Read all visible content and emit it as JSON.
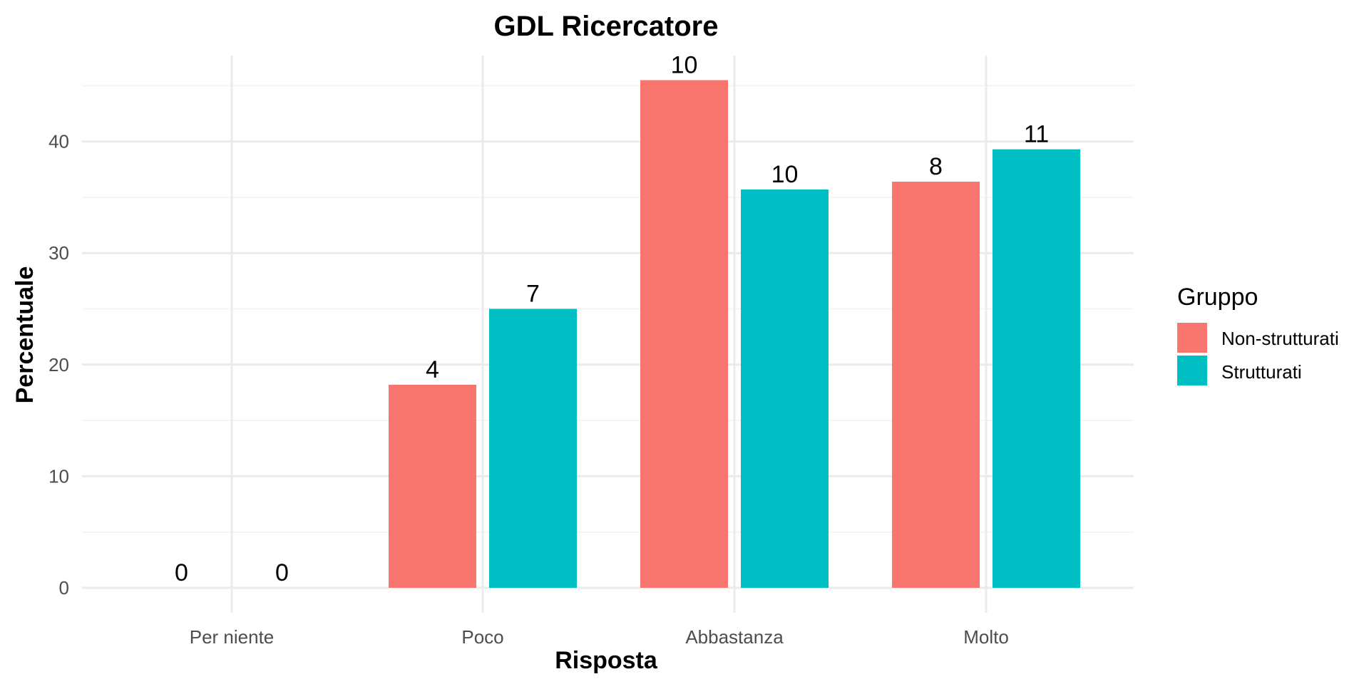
{
  "chart_data": {
    "type": "bar",
    "title": "GDL Ricercatore",
    "xlabel": "Risposta",
    "ylabel": "Percentuale",
    "categories": [
      "Per niente",
      "Poco",
      "Abbastanza",
      "Molto"
    ],
    "series": [
      {
        "name": "Non-strutturati",
        "color": "#F8766D",
        "values": [
          0,
          18.2,
          45.5,
          36.4
        ],
        "labels": [
          "0",
          "4",
          "10",
          "8"
        ]
      },
      {
        "name": "Strutturati",
        "color": "#00BFC4",
        "values": [
          0,
          25.0,
          35.7,
          39.3
        ],
        "labels": [
          "0",
          "7",
          "10",
          "11"
        ]
      }
    ],
    "ylim": [
      0,
      47.8
    ],
    "yticks": [
      0,
      10,
      20,
      30,
      40
    ],
    "ytick_labels": [
      "0",
      "10",
      "20",
      "30",
      "40"
    ],
    "grid": true,
    "legend": {
      "title": "Gruppo",
      "position": "right"
    }
  }
}
